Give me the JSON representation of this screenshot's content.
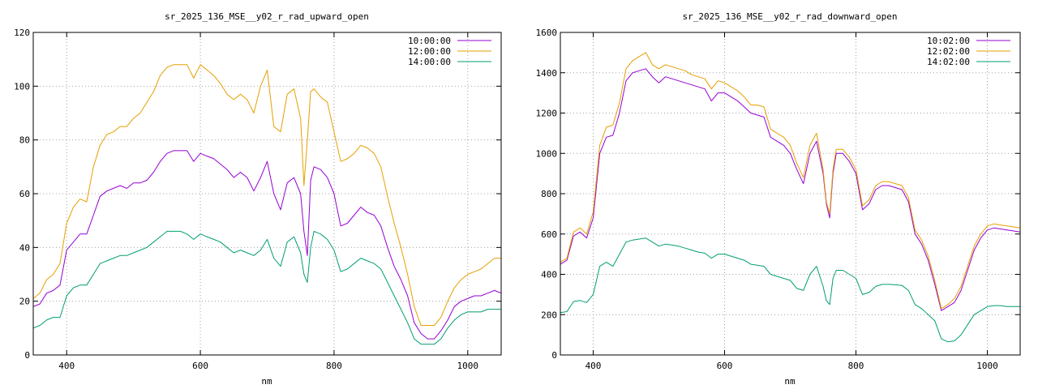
{
  "chart_data": [
    {
      "type": "line",
      "title": "sr_2025_136_MSE__y02_r_rad_upward_open",
      "xlabel": "nm",
      "ylabel": "",
      "xlim": [
        350,
        1050
      ],
      "ylim": [
        0,
        120
      ],
      "x_ticks": [
        400,
        600,
        800,
        1000
      ],
      "y_ticks": [
        0,
        20,
        40,
        60,
        80,
        100,
        120
      ],
      "grid": true,
      "legend_position": "top-right",
      "series": [
        {
          "name": "10:00:00",
          "color": "#9400d3",
          "x": [
            350,
            360,
            370,
            380,
            390,
            400,
            410,
            420,
            430,
            440,
            450,
            460,
            470,
            480,
            490,
            500,
            510,
            520,
            530,
            540,
            550,
            560,
            570,
            580,
            590,
            600,
            610,
            620,
            630,
            640,
            650,
            660,
            670,
            680,
            690,
            700,
            710,
            720,
            730,
            740,
            750,
            755,
            760,
            765,
            770,
            780,
            790,
            800,
            810,
            820,
            830,
            840,
            850,
            860,
            870,
            880,
            890,
            900,
            910,
            920,
            930,
            940,
            950,
            960,
            970,
            980,
            990,
            1000,
            1010,
            1020,
            1030,
            1040,
            1050
          ],
          "y": [
            18,
            19,
            23,
            24,
            26,
            39,
            42,
            45,
            45,
            52,
            59,
            61,
            62,
            63,
            62,
            64,
            64,
            65,
            68,
            72,
            75,
            76,
            76,
            76,
            72,
            75,
            74,
            73,
            71,
            69,
            66,
            68,
            66,
            61,
            66,
            72,
            60,
            54,
            64,
            66,
            60,
            46,
            37,
            65,
            70,
            69,
            66,
            60,
            48,
            49,
            52,
            55,
            53,
            52,
            48,
            40,
            33,
            28,
            22,
            12,
            8,
            6,
            6,
            9,
            13,
            18,
            20,
            21,
            22,
            22,
            23,
            24,
            23
          ]
        },
        {
          "name": "12:00:00",
          "color": "#e69f00",
          "x": [
            350,
            360,
            370,
            380,
            390,
            400,
            410,
            420,
            430,
            440,
            450,
            460,
            470,
            480,
            490,
            500,
            510,
            520,
            530,
            540,
            550,
            560,
            570,
            580,
            590,
            600,
            610,
            620,
            630,
            640,
            650,
            660,
            670,
            680,
            690,
            700,
            710,
            720,
            730,
            740,
            750,
            755,
            760,
            765,
            770,
            780,
            790,
            800,
            810,
            820,
            830,
            840,
            850,
            860,
            870,
            880,
            890,
            900,
            910,
            920,
            930,
            940,
            950,
            960,
            970,
            980,
            990,
            1000,
            1010,
            1020,
            1030,
            1040,
            1050
          ],
          "y": [
            21,
            23,
            28,
            30,
            34,
            49,
            55,
            58,
            57,
            70,
            78,
            82,
            83,
            85,
            85,
            88,
            90,
            94,
            98,
            104,
            107,
            108,
            108,
            108,
            103,
            108,
            106,
            104,
            101,
            97,
            95,
            97,
            95,
            90,
            100,
            106,
            85,
            83,
            97,
            99,
            88,
            63,
            80,
            98,
            99,
            96,
            94,
            83,
            72,
            73,
            75,
            78,
            77,
            75,
            70,
            59,
            49,
            40,
            30,
            18,
            11,
            11,
            11,
            14,
            20,
            25,
            28,
            30,
            31,
            32,
            34,
            36,
            36
          ]
        },
        {
          "name": "14:00:00",
          "color": "#009e73",
          "x": [
            350,
            360,
            370,
            380,
            390,
            400,
            410,
            420,
            430,
            440,
            450,
            460,
            470,
            480,
            490,
            500,
            510,
            520,
            530,
            540,
            550,
            560,
            570,
            580,
            590,
            600,
            610,
            620,
            630,
            640,
            650,
            660,
            670,
            680,
            690,
            700,
            710,
            720,
            730,
            740,
            750,
            755,
            760,
            765,
            770,
            780,
            790,
            800,
            810,
            820,
            830,
            840,
            850,
            860,
            870,
            880,
            890,
            900,
            910,
            920,
            930,
            940,
            950,
            960,
            970,
            980,
            990,
            1000,
            1010,
            1020,
            1030,
            1040,
            1050
          ],
          "y": [
            10,
            11,
            13,
            14,
            14,
            22,
            25,
            26,
            26,
            30,
            34,
            35,
            36,
            37,
            37,
            38,
            39,
            40,
            42,
            44,
            46,
            46,
            46,
            45,
            43,
            45,
            44,
            43,
            42,
            40,
            38,
            39,
            38,
            37,
            39,
            43,
            36,
            33,
            42,
            44,
            38,
            30,
            27,
            40,
            46,
            45,
            43,
            39,
            31,
            32,
            34,
            36,
            35,
            34,
            32,
            27,
            22,
            17,
            12,
            6,
            4,
            4,
            4,
            6,
            10,
            13,
            15,
            16,
            16,
            16,
            17,
            17,
            17
          ]
        }
      ]
    },
    {
      "type": "line",
      "title": "sr_2025_136_MSE__y02_r_rad_downward_open",
      "xlabel": "nm",
      "ylabel": "",
      "xlim": [
        350,
        1050
      ],
      "ylim": [
        0,
        1600
      ],
      "x_ticks": [
        400,
        600,
        800,
        1000
      ],
      "y_ticks": [
        0,
        200,
        400,
        600,
        800,
        1000,
        1200,
        1400,
        1600
      ],
      "grid": true,
      "legend_position": "top-right",
      "series": [
        {
          "name": "10:02:00",
          "color": "#9400d3",
          "x": [
            350,
            360,
            370,
            380,
            390,
            400,
            410,
            420,
            430,
            440,
            450,
            460,
            470,
            480,
            490,
            500,
            510,
            520,
            530,
            540,
            550,
            560,
            570,
            580,
            590,
            600,
            610,
            620,
            630,
            640,
            650,
            660,
            670,
            680,
            690,
            700,
            710,
            720,
            730,
            740,
            750,
            755,
            760,
            765,
            770,
            780,
            790,
            800,
            810,
            820,
            830,
            840,
            850,
            860,
            870,
            880,
            890,
            900,
            910,
            920,
            930,
            940,
            950,
            960,
            970,
            980,
            990,
            1000,
            1010,
            1020,
            1030,
            1040,
            1050
          ],
          "y": [
            450,
            470,
            590,
            610,
            580,
            680,
            1000,
            1080,
            1090,
            1200,
            1360,
            1400,
            1410,
            1420,
            1380,
            1350,
            1380,
            1370,
            1360,
            1350,
            1340,
            1330,
            1320,
            1260,
            1300,
            1300,
            1280,
            1260,
            1230,
            1200,
            1190,
            1180,
            1080,
            1060,
            1040,
            1000,
            920,
            850,
            1000,
            1060,
            900,
            750,
            680,
            900,
            1000,
            1000,
            960,
            900,
            720,
            750,
            820,
            840,
            840,
            830,
            820,
            760,
            600,
            550,
            470,
            350,
            220,
            240,
            260,
            320,
            420,
            520,
            580,
            620,
            630,
            625,
            620,
            615,
            610
          ]
        },
        {
          "name": "12:02:00",
          "color": "#e69f00",
          "x": [
            350,
            360,
            370,
            380,
            390,
            400,
            410,
            420,
            430,
            440,
            450,
            460,
            470,
            480,
            490,
            500,
            510,
            520,
            530,
            540,
            550,
            560,
            570,
            580,
            590,
            600,
            610,
            620,
            630,
            640,
            650,
            660,
            670,
            680,
            690,
            700,
            710,
            720,
            730,
            740,
            750,
            755,
            760,
            765,
            770,
            780,
            790,
            800,
            810,
            820,
            830,
            840,
            850,
            860,
            870,
            880,
            890,
            900,
            910,
            920,
            930,
            940,
            950,
            960,
            970,
            980,
            990,
            1000,
            1010,
            1020,
            1030,
            1040,
            1050
          ],
          "y": [
            460,
            480,
            610,
            630,
            600,
            710,
            1040,
            1130,
            1140,
            1250,
            1420,
            1460,
            1480,
            1500,
            1440,
            1420,
            1440,
            1430,
            1420,
            1410,
            1390,
            1380,
            1370,
            1320,
            1360,
            1350,
            1330,
            1310,
            1280,
            1240,
            1240,
            1230,
            1120,
            1100,
            1080,
            1040,
            950,
            880,
            1040,
            1100,
            920,
            760,
            700,
            920,
            1020,
            1020,
            980,
            920,
            740,
            770,
            840,
            860,
            860,
            850,
            840,
            780,
            620,
            570,
            490,
            370,
            230,
            250,
            280,
            340,
            440,
            540,
            600,
            640,
            650,
            645,
            640,
            635,
            630
          ]
        },
        {
          "name": "14:02:00",
          "color": "#009e73",
          "x": [
            350,
            360,
            370,
            380,
            390,
            400,
            410,
            420,
            430,
            440,
            450,
            460,
            470,
            480,
            490,
            500,
            510,
            520,
            530,
            540,
            550,
            560,
            570,
            580,
            590,
            600,
            610,
            620,
            630,
            640,
            650,
            660,
            670,
            680,
            690,
            700,
            710,
            720,
            730,
            740,
            750,
            755,
            760,
            765,
            770,
            780,
            790,
            800,
            810,
            820,
            830,
            840,
            850,
            860,
            870,
            880,
            890,
            900,
            910,
            920,
            930,
            940,
            950,
            960,
            970,
            980,
            990,
            1000,
            1010,
            1020,
            1030,
            1040,
            1050
          ],
          "y": [
            210,
            215,
            265,
            270,
            260,
            300,
            440,
            460,
            440,
            500,
            560,
            570,
            575,
            580,
            560,
            540,
            550,
            545,
            540,
            530,
            520,
            510,
            505,
            480,
            500,
            500,
            490,
            480,
            470,
            450,
            445,
            440,
            400,
            390,
            380,
            370,
            330,
            320,
            400,
            440,
            340,
            270,
            250,
            380,
            420,
            420,
            400,
            380,
            300,
            310,
            340,
            350,
            350,
            348,
            345,
            320,
            250,
            230,
            200,
            170,
            80,
            65,
            70,
            100,
            150,
            200,
            220,
            240,
            245,
            245,
            240,
            240,
            240
          ]
        }
      ]
    }
  ]
}
